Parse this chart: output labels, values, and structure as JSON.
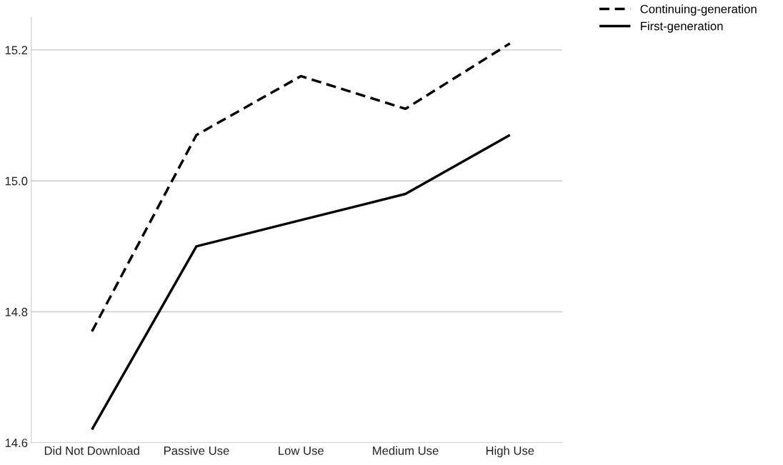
{
  "chart_data": {
    "type": "line",
    "categories": [
      "Did Not Download",
      "Passive Use",
      "Low Use",
      "Medium Use",
      "High Use"
    ],
    "series": [
      {
        "name": "Continuing-generation",
        "color": "#000000",
        "line_style": "dashed",
        "values": [
          14.77,
          15.07,
          15.16,
          15.11,
          15.21
        ]
      },
      {
        "name": "First-generation",
        "color": "#000000",
        "line_style": "solid",
        "values": [
          14.62,
          14.9,
          14.94,
          14.98,
          15.07
        ]
      }
    ],
    "ylim": [
      14.6,
      15.25
    ],
    "yticks": [
      {
        "value": 14.6,
        "label": "14.6"
      },
      {
        "value": 14.8,
        "label": "14.8"
      },
      {
        "value": 15.0,
        "label": "15.0"
      },
      {
        "value": 15.2,
        "label": "15.2"
      }
    ],
    "grid": "y",
    "legend": "top right",
    "marker": "none"
  }
}
